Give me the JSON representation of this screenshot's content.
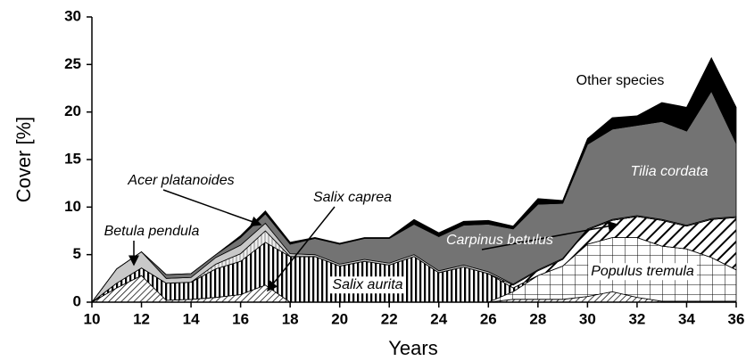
{
  "chart_data": {
    "type": "stacked-area",
    "x_label": "Years",
    "y_label": "Cover [%]",
    "x": [
      10,
      11,
      12,
      13,
      14,
      15,
      16,
      17,
      18,
      19,
      20,
      21,
      22,
      23,
      24,
      25,
      26,
      27,
      28,
      29,
      30,
      31,
      32,
      33,
      34,
      35,
      36
    ],
    "xlim": [
      10,
      36
    ],
    "xticks": [
      10,
      12,
      14,
      16,
      18,
      20,
      22,
      24,
      26,
      28,
      30,
      32,
      34,
      36
    ],
    "ylim": [
      0,
      30
    ],
    "yticks": [
      0,
      5,
      10,
      15,
      20,
      25,
      30
    ],
    "series": [
      {
        "name": "Salix caprea",
        "color": "#ffffff",
        "pattern": "fine-diagonal",
        "values": [
          0,
          1.5,
          2.8,
          0.2,
          0.3,
          0.5,
          0.8,
          1.8,
          0,
          0,
          0,
          0,
          0,
          0,
          0,
          0,
          0,
          0.3,
          0.3,
          0.3,
          0.6,
          1.1,
          0.5,
          0.1,
          0.1,
          0.1,
          0.1
        ]
      },
      {
        "name": "Populus tremula",
        "color": "#ffffff",
        "pattern": "grid",
        "values": [
          0,
          0,
          0,
          0,
          0,
          0,
          0,
          0,
          0,
          0,
          0,
          0,
          0,
          0,
          0,
          0,
          0,
          0.8,
          2.5,
          3.5,
          5.5,
          5.7,
          6.3,
          5.8,
          5.5,
          4.6,
          3.3
        ]
      },
      {
        "name": "Salix aurita",
        "color": "#ffffff",
        "pattern": "vertical",
        "values": [
          0,
          0.5,
          0.8,
          1.8,
          1.8,
          3,
          3.5,
          4.5,
          4.8,
          4.8,
          3.8,
          4.3,
          3.9,
          4.8,
          3.1,
          3.7,
          3.0,
          0.4,
          0,
          0,
          0,
          0,
          0,
          0,
          0,
          0,
          0
        ]
      },
      {
        "name": "Carpinus betulus",
        "color": "#ffffff",
        "pattern": "wide-diagonal",
        "values": [
          0,
          0,
          0,
          0,
          0,
          0,
          0,
          0,
          0,
          0,
          0,
          0,
          0,
          0,
          0,
          0,
          0,
          0.3,
          0.5,
          0.7,
          1.5,
          1.8,
          2.2,
          2.7,
          2.4,
          4,
          5.5
        ]
      },
      {
        "name": "Acer platanoides",
        "color": "#e6e6e6",
        "pattern": "thin-vertical",
        "values": [
          0,
          0,
          0,
          0,
          0,
          0.5,
          0.8,
          1.2,
          0,
          0,
          0,
          0,
          0,
          0,
          0,
          0,
          0,
          0,
          0,
          0,
          0,
          0,
          0,
          0,
          0,
          0,
          0
        ]
      },
      {
        "name": "Betula pendula",
        "color": "#c8c8c8",
        "pattern": "solid",
        "values": [
          0,
          1.5,
          1.7,
          0.5,
          0.5,
          0.7,
          0.9,
          0.8,
          0.3,
          0.2,
          0.2,
          0.2,
          0.2,
          0.2,
          0.2,
          0.2,
          0.2,
          0.1,
          0.1,
          0.1,
          0.1,
          0.1,
          0.1,
          0.1,
          0.1,
          0.1,
          0.1
        ]
      },
      {
        "name": "Tilia cordata",
        "color": "#737373",
        "pattern": "solid",
        "values": [
          0,
          0,
          0,
          0.4,
          0.4,
          0.3,
          0.8,
          1.0,
          1.0,
          1.7,
          2.1,
          2.2,
          2.6,
          3.2,
          3.6,
          4.2,
          5.0,
          5.8,
          6.9,
          5.8,
          8.9,
          9.5,
          9.5,
          10.3,
          9.9,
          13.4,
          7.7
        ]
      },
      {
        "name": "Other species",
        "color": "#000000",
        "pattern": "solid",
        "values": [
          0,
          0,
          0,
          0,
          0,
          0,
          0.2,
          0.3,
          0.2,
          0.1,
          0.1,
          0.1,
          0.1,
          0.5,
          0.4,
          0.4,
          0.4,
          0.3,
          0.6,
          0.3,
          0.6,
          1.2,
          1.0,
          2.0,
          2.5,
          3.5,
          3.8
        ]
      }
    ]
  }
}
